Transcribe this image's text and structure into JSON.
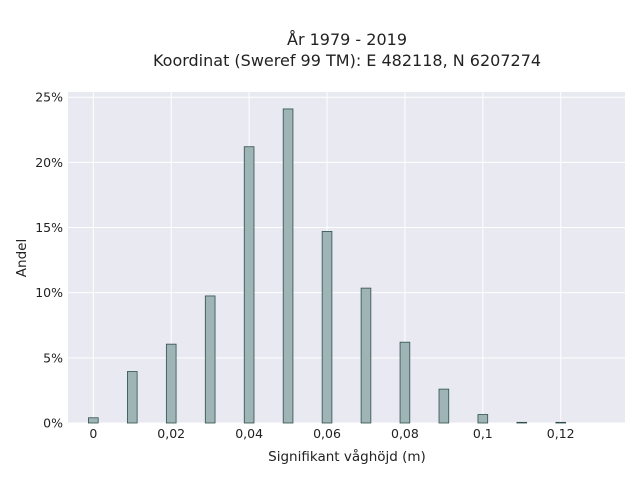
{
  "chart_data": {
    "type": "bar",
    "title_lines": [
      "År 1979 - 2019",
      "Koordinat (Sweref 99 TM): E 482118, N 6207274"
    ],
    "xlabel": "Signifikant våghöjd (m)",
    "ylabel": "Andel",
    "x_ticks": [
      {
        "value": 0,
        "label": "0"
      },
      {
        "value": 0.02,
        "label": "0,02"
      },
      {
        "value": 0.04,
        "label": "0,04"
      },
      {
        "value": 0.06,
        "label": "0,06"
      },
      {
        "value": 0.08,
        "label": "0,08"
      },
      {
        "value": 0.1,
        "label": "0,1"
      },
      {
        "value": 0.12,
        "label": "0,12"
      }
    ],
    "y_ticks": [
      {
        "value": 0,
        "label": "0%"
      },
      {
        "value": 5,
        "label": "5%"
      },
      {
        "value": 10,
        "label": "10%"
      },
      {
        "value": 15,
        "label": "15%"
      },
      {
        "value": 20,
        "label": "20%"
      },
      {
        "value": 25,
        "label": "25%"
      }
    ],
    "xlim": [
      -0.0065,
      0.1365
    ],
    "ylim": [
      0,
      25.4
    ],
    "x": [
      0,
      0.01,
      0.02,
      0.03,
      0.04,
      0.05,
      0.06,
      0.07,
      0.08,
      0.09,
      0.1,
      0.11,
      0.12
    ],
    "values": [
      0.4,
      3.95,
      6.05,
      9.75,
      21.2,
      24.1,
      14.7,
      10.35,
      6.2,
      2.6,
      0.65,
      0.05,
      0.05
    ],
    "bar_width": 0.0025,
    "colors": {
      "bar_fill": "#9fb4b4",
      "bar_edge": "#2f4f4f",
      "plot_bg": "#e9e9f1",
      "grid": "#ffffff"
    },
    "grid": true
  }
}
